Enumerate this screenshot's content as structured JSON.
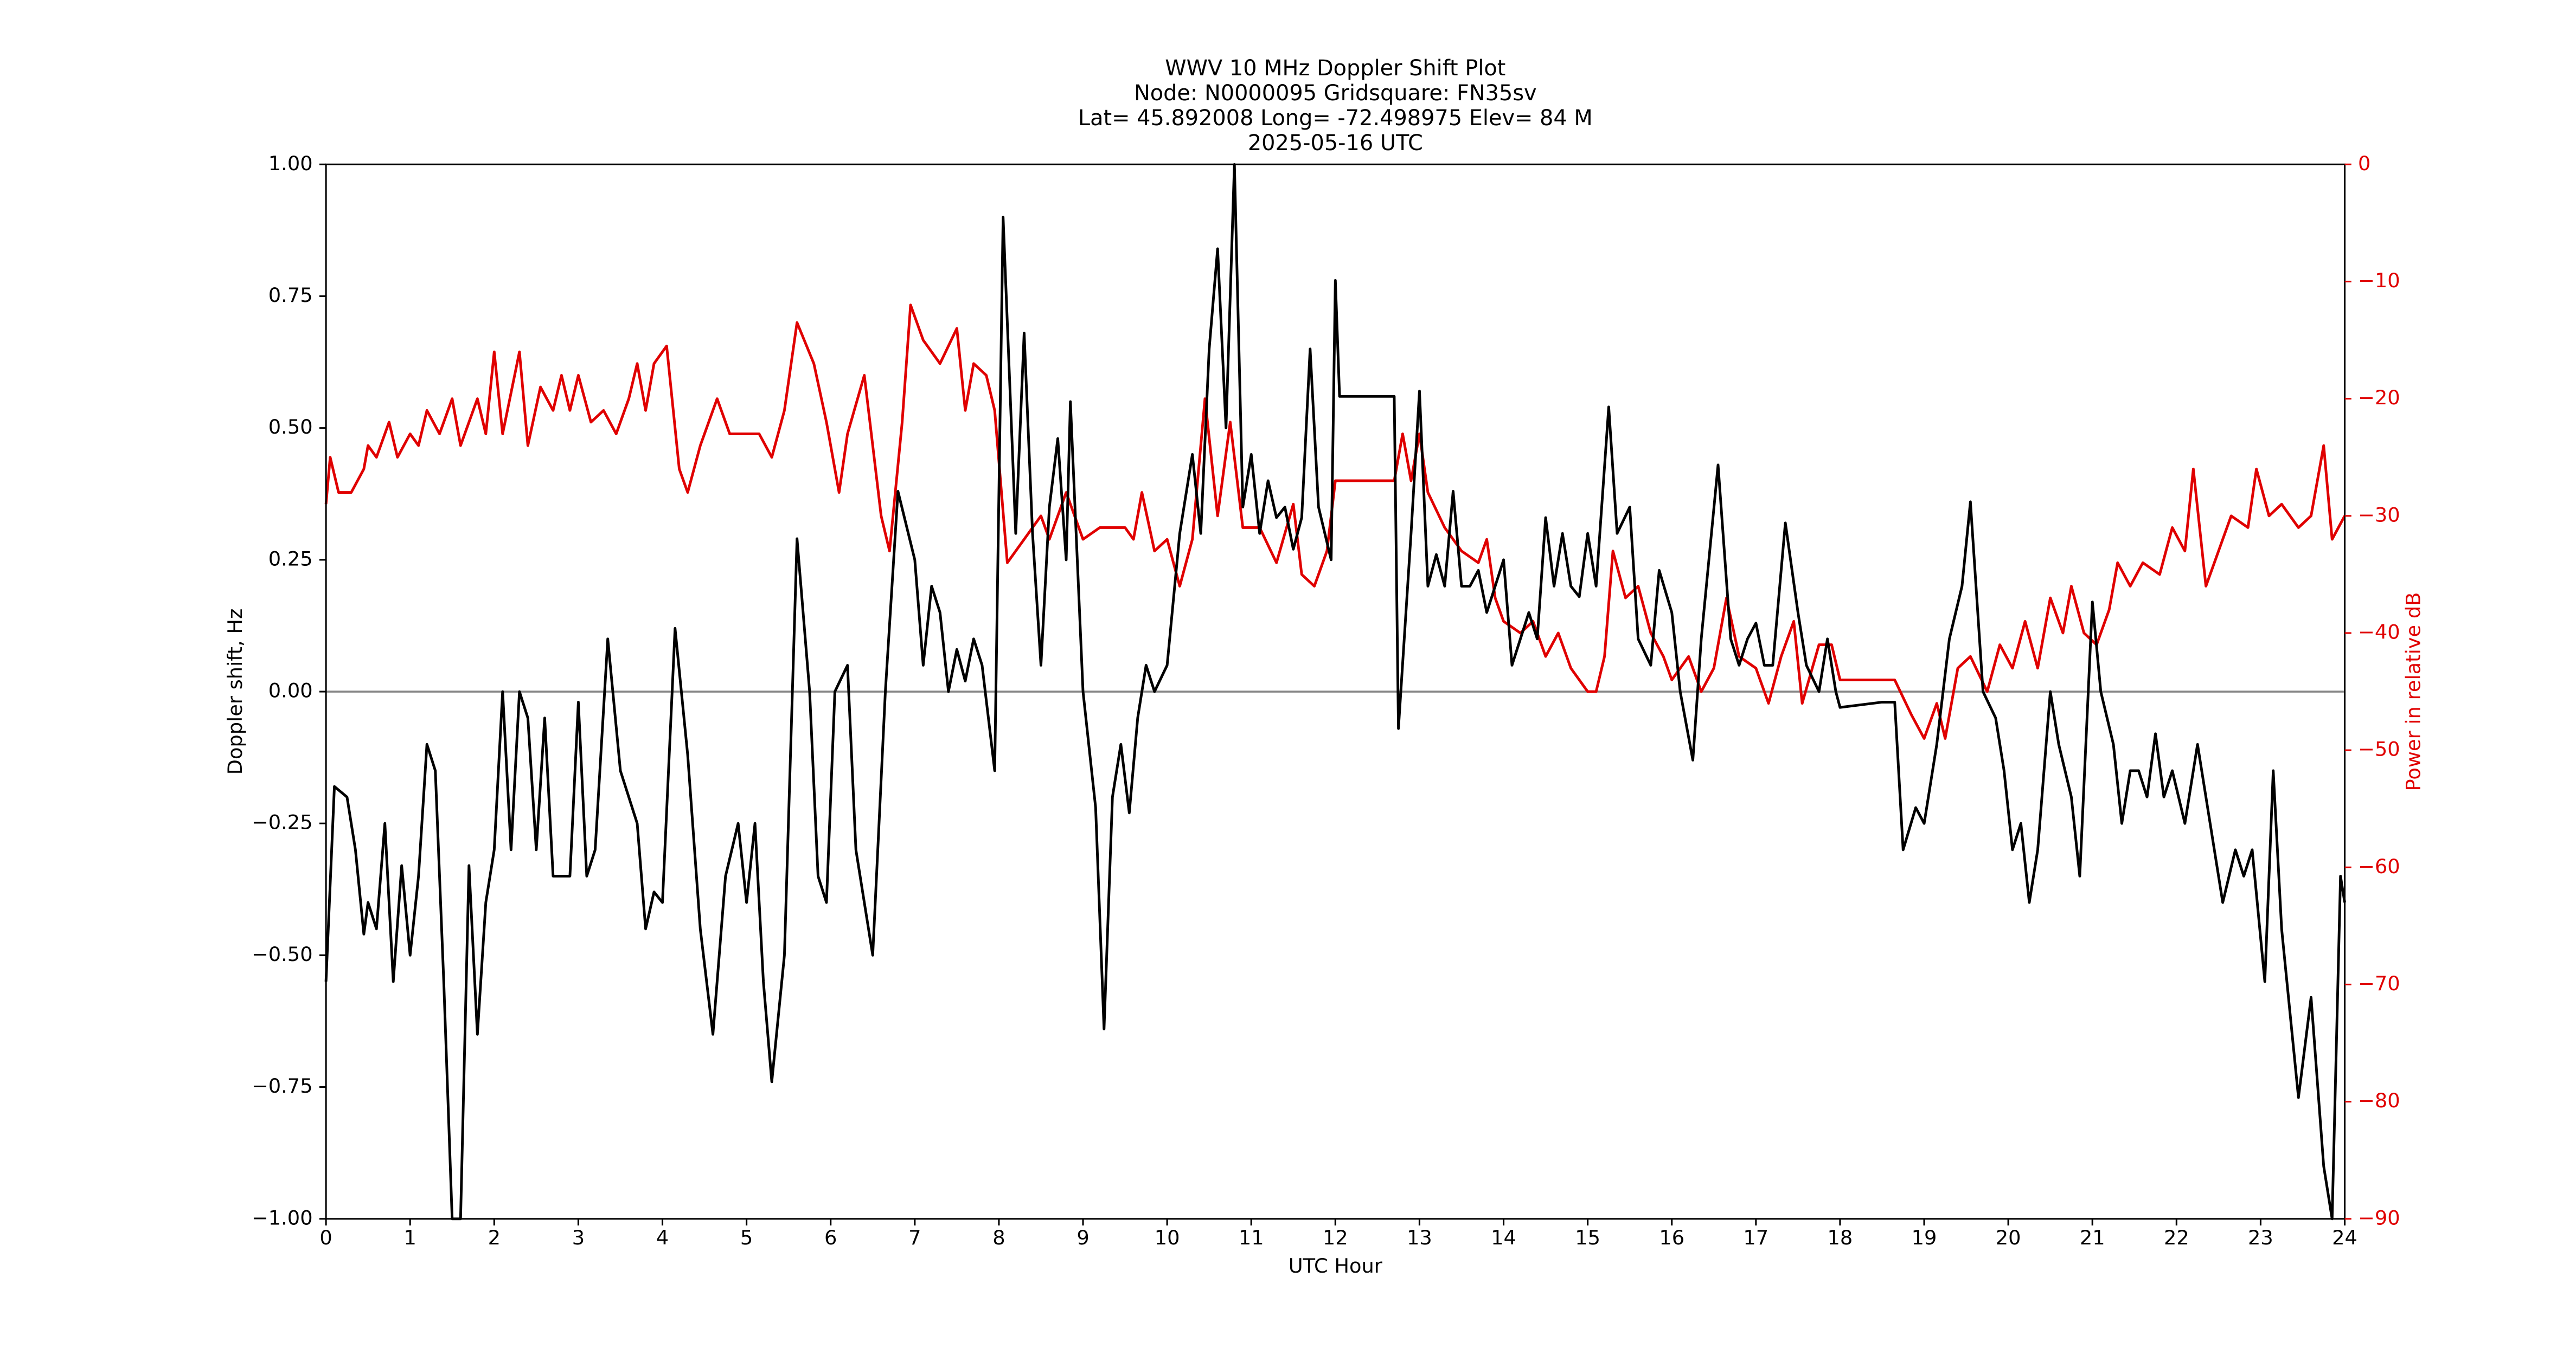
{
  "chart_data": {
    "type": "line",
    "title": [
      "WWV 10 MHz Doppler Shift Plot",
      "Node:  N0000095     Gridsquare:  FN35sv",
      "Lat= 45.892008    Long= -72.498975    Elev= 84 M",
      "2025-05-16  UTC"
    ],
    "xlabel": "UTC Hour",
    "ylabel": "Doppler shift, Hz",
    "y2label": "Power in relative dB",
    "xlim": [
      0,
      24
    ],
    "xticks": [
      0,
      1,
      2,
      3,
      4,
      5,
      6,
      7,
      8,
      9,
      10,
      11,
      12,
      13,
      14,
      15,
      16,
      17,
      18,
      19,
      20,
      21,
      22,
      23,
      24
    ],
    "ylim": [
      -1,
      1
    ],
    "yticks": [
      {
        "value": -1,
        "label": "−1.00"
      },
      {
        "value": -0.75,
        "label": "−0.75"
      },
      {
        "value": -0.5,
        "label": "−0.50"
      },
      {
        "value": -0.25,
        "label": "−0.25"
      },
      {
        "value": 0,
        "label": "0.00"
      },
      {
        "value": 0.25,
        "label": "0.25"
      },
      {
        "value": 0.5,
        "label": "0.50"
      },
      {
        "value": 0.75,
        "label": "0.75"
      },
      {
        "value": 1,
        "label": "1.00"
      }
    ],
    "y2lim": [
      -90,
      0
    ],
    "y2ticks": [
      {
        "value": -90,
        "label": "−90"
      },
      {
        "value": -80,
        "label": "−80"
      },
      {
        "value": -70,
        "label": "−70"
      },
      {
        "value": -60,
        "label": "−60"
      },
      {
        "value": -50,
        "label": "−50"
      },
      {
        "value": -40,
        "label": "−40"
      },
      {
        "value": -30,
        "label": "−30"
      },
      {
        "value": -20,
        "label": "−20"
      },
      {
        "value": -10,
        "label": "−10"
      },
      0
    ],
    "y2color": "#e00000",
    "axhline": 0,
    "series": [
      {
        "color": "#000000",
        "axis": "y",
        "x": [
          0,
          0.1,
          0.25,
          0.35,
          0.45,
          0.5,
          0.6,
          0.7,
          0.8,
          0.9,
          1.0,
          1.1,
          1.2,
          1.3,
          1.4,
          1.5,
          1.6,
          1.7,
          1.8,
          1.9,
          2.0,
          2.1,
          2.2,
          2.3,
          2.4,
          2.5,
          2.6,
          2.7,
          2.9,
          3.0,
          3.1,
          3.2,
          3.35,
          3.5,
          3.7,
          3.8,
          3.9,
          4.0,
          4.15,
          4.3,
          4.45,
          4.6,
          4.75,
          4.9,
          5.0,
          5.1,
          5.2,
          5.3,
          5.45,
          5.6,
          5.75,
          5.85,
          5.95,
          6.05,
          6.2,
          6.3,
          6.5,
          6.65,
          6.8,
          7.0,
          7.1,
          7.2,
          7.3,
          7.4,
          7.5,
          7.6,
          7.7,
          7.8,
          7.95,
          8.05,
          8.2,
          8.3,
          8.4,
          8.5,
          8.6,
          8.7,
          8.8,
          8.85,
          9.0,
          9.15,
          9.25,
          9.35,
          9.45,
          9.55,
          9.65,
          9.75,
          9.85,
          10.0,
          10.15,
          10.3,
          10.4,
          10.5,
          10.6,
          10.7,
          10.8,
          10.9,
          11.0,
          11.1,
          11.2,
          11.3,
          11.4,
          11.5,
          11.6,
          11.7,
          11.8,
          11.95,
          12.0,
          12.05,
          12.5,
          12.7,
          12.75,
          12.9,
          13.0,
          13.1,
          13.2,
          13.3,
          13.4,
          13.5,
          13.6,
          13.7,
          13.8,
          13.9,
          14.0,
          14.1,
          14.2,
          14.3,
          14.4,
          14.5,
          14.6,
          14.7,
          14.8,
          14.9,
          15.0,
          15.1,
          15.25,
          15.35,
          15.5,
          15.6,
          15.75,
          15.85,
          16.0,
          16.1,
          16.25,
          16.35,
          16.55,
          16.7,
          16.8,
          16.9,
          17.0,
          17.1,
          17.2,
          17.35,
          17.5,
          17.6,
          17.75,
          17.85,
          17.95,
          18.0,
          18.5,
          18.65,
          18.75,
          18.9,
          19.0,
          19.15,
          19.3,
          19.45,
          19.55,
          19.7,
          19.85,
          19.95,
          20.05,
          20.15,
          20.25,
          20.35,
          20.5,
          20.6,
          20.75,
          20.85,
          21.0,
          21.1,
          21.25,
          21.35,
          21.45,
          21.55,
          21.65,
          21.75,
          21.85,
          21.95,
          22.1,
          22.25,
          22.4,
          22.55,
          22.7,
          22.8,
          22.9,
          23.05,
          23.15,
          23.25,
          23.45,
          23.6,
          23.75,
          23.85,
          23.95,
          24.0
        ],
        "values": [
          -0.55,
          -0.18,
          -0.2,
          -0.3,
          -0.46,
          -0.4,
          -0.45,
          -0.25,
          -0.55,
          -0.33,
          -0.5,
          -0.35,
          -0.1,
          -0.15,
          -0.55,
          -1.0,
          -1.0,
          -0.33,
          -0.65,
          -0.4,
          -0.3,
          0.0,
          -0.3,
          0.0,
          -0.05,
          -0.3,
          -0.05,
          -0.35,
          -0.35,
          -0.02,
          -0.35,
          -0.3,
          0.1,
          -0.15,
          -0.25,
          -0.45,
          -0.38,
          -0.4,
          0.12,
          -0.12,
          -0.45,
          -0.65,
          -0.35,
          -0.25,
          -0.4,
          -0.25,
          -0.55,
          -0.74,
          -0.5,
          0.29,
          0.0,
          -0.35,
          -0.4,
          0.0,
          0.05,
          -0.3,
          -0.5,
          0.0,
          0.38,
          0.25,
          0.05,
          0.2,
          0.15,
          0.0,
          0.08,
          0.02,
          0.1,
          0.05,
          -0.15,
          0.9,
          0.3,
          0.68,
          0.3,
          0.05,
          0.35,
          0.48,
          0.25,
          0.55,
          0.0,
          -0.22,
          -0.64,
          -0.2,
          -0.1,
          -0.23,
          -0.05,
          0.05,
          0.0,
          0.05,
          0.3,
          0.45,
          0.3,
          0.65,
          0.84,
          0.5,
          1.0,
          0.35,
          0.45,
          0.3,
          0.4,
          0.33,
          0.35,
          0.27,
          0.33,
          0.65,
          0.35,
          0.25,
          0.78,
          0.56,
          0.56,
          0.56,
          -0.07,
          0.3,
          0.57,
          0.2,
          0.26,
          0.2,
          0.38,
          0.2,
          0.2,
          0.23,
          0.15,
          0.2,
          0.25,
          0.05,
          0.1,
          0.15,
          0.1,
          0.33,
          0.2,
          0.3,
          0.2,
          0.18,
          0.3,
          0.2,
          0.54,
          0.3,
          0.35,
          0.1,
          0.05,
          0.23,
          0.15,
          0.0,
          -0.13,
          0.1,
          0.43,
          0.1,
          0.05,
          0.1,
          0.13,
          0.05,
          0.05,
          0.32,
          0.15,
          0.05,
          0.0,
          0.1,
          0.0,
          -0.03,
          -0.02,
          -0.02,
          -0.3,
          -0.22,
          -0.25,
          -0.1,
          0.1,
          0.2,
          0.36,
          0.0,
          -0.05,
          -0.15,
          -0.3,
          -0.25,
          -0.4,
          -0.3,
          0.0,
          -0.1,
          -0.2,
          -0.35,
          0.17,
          0.0,
          -0.1,
          -0.25,
          -0.15,
          -0.15,
          -0.2,
          -0.08,
          -0.2,
          -0.15,
          -0.25,
          -0.1,
          -0.25,
          -0.4,
          -0.3,
          -0.35,
          -0.3,
          -0.55,
          -0.15,
          -0.45,
          -0.77,
          -0.58,
          -0.9,
          -1.0,
          -0.35,
          -0.4
        ]
      },
      {
        "color": "#e00000",
        "axis": "y2",
        "x": [
          0,
          0.05,
          0.15,
          0.3,
          0.45,
          0.5,
          0.6,
          0.75,
          0.85,
          1.0,
          1.1,
          1.2,
          1.35,
          1.5,
          1.6,
          1.8,
          1.9,
          2.0,
          2.1,
          2.3,
          2.4,
          2.55,
          2.7,
          2.8,
          2.9,
          3.0,
          3.15,
          3.3,
          3.45,
          3.6,
          3.7,
          3.8,
          3.9,
          4.05,
          4.2,
          4.3,
          4.45,
          4.65,
          4.8,
          5.0,
          5.15,
          5.3,
          5.45,
          5.6,
          5.8,
          5.95,
          6.1,
          6.2,
          6.4,
          6.6,
          6.7,
          6.85,
          6.95,
          7.1,
          7.3,
          7.5,
          7.6,
          7.7,
          7.85,
          7.95,
          8.1,
          8.3,
          8.5,
          8.6,
          8.8,
          9.0,
          9.2,
          9.5,
          9.6,
          9.7,
          9.85,
          10.0,
          10.15,
          10.3,
          10.45,
          10.6,
          10.75,
          10.9,
          11.1,
          11.3,
          11.5,
          11.6,
          11.75,
          11.9,
          12.0,
          12.5,
          12.7,
          12.8,
          12.9,
          13.0,
          13.1,
          13.3,
          13.5,
          13.7,
          13.8,
          13.9,
          14.0,
          14.2,
          14.35,
          14.5,
          14.65,
          14.8,
          15.0,
          15.1,
          15.2,
          15.3,
          15.45,
          15.6,
          15.75,
          15.9,
          16.0,
          16.2,
          16.35,
          16.5,
          16.65,
          16.8,
          17.0,
          17.15,
          17.3,
          17.45,
          17.55,
          17.75,
          17.9,
          18.0,
          18.65,
          18.85,
          19.0,
          19.15,
          19.25,
          19.4,
          19.55,
          19.75,
          19.9,
          20.05,
          20.2,
          20.35,
          20.5,
          20.65,
          20.75,
          20.9,
          21.05,
          21.2,
          21.3,
          21.45,
          21.6,
          21.8,
          21.95,
          22.1,
          22.2,
          22.35,
          22.55,
          22.65,
          22.85,
          22.95,
          23.1,
          23.25,
          23.45,
          23.6,
          23.75,
          23.85,
          24.0
        ],
        "values": [
          -29,
          -25,
          -28,
          -28,
          -26,
          -24,
          -25,
          -22,
          -25,
          -23,
          -24,
          -21,
          -23,
          -20,
          -24,
          -20,
          -23,
          -16,
          -23,
          -16,
          -24,
          -19,
          -21,
          -18,
          -21,
          -18,
          -22,
          -21,
          -23,
          -20,
          -17,
          -21,
          -17,
          -15.5,
          -26,
          -28,
          -24,
          -20,
          -23,
          -23,
          -23,
          -25,
          -21,
          -13.5,
          -17,
          -22,
          -28,
          -23,
          -18,
          -30,
          -33,
          -22,
          -12,
          -15,
          -17,
          -14,
          -21,
          -17,
          -18,
          -21,
          -34,
          -32,
          -30,
          -32,
          -28,
          -32,
          -31,
          -31,
          -32,
          -28,
          -33,
          -32,
          -36,
          -32,
          -20,
          -30,
          -22,
          -31,
          -31,
          -34,
          -29,
          -35,
          -36,
          -33,
          -27,
          -27,
          -27,
          -23,
          -27,
          -23,
          -28,
          -31,
          -33,
          -34,
          -32,
          -37,
          -39,
          -40,
          -39,
          -42,
          -40,
          -43,
          -45,
          -45,
          -42,
          -33,
          -37,
          -36,
          -40,
          -42,
          -44,
          -42,
          -45,
          -43,
          -37,
          -42,
          -43,
          -46,
          -42,
          -39,
          -46,
          -41,
          -41,
          -44,
          -44,
          -47,
          -49,
          -46,
          -49,
          -43,
          -42,
          -45,
          -41,
          -43,
          -39,
          -43,
          -37,
          -40,
          -36,
          -40,
          -41,
          -38,
          -34,
          -36,
          -34,
          -35,
          -31,
          -33,
          -26,
          -36,
          -32,
          -30,
          -31,
          -26,
          -30,
          -29,
          -31,
          -30,
          -24,
          -32,
          -30
        ]
      }
    ]
  }
}
